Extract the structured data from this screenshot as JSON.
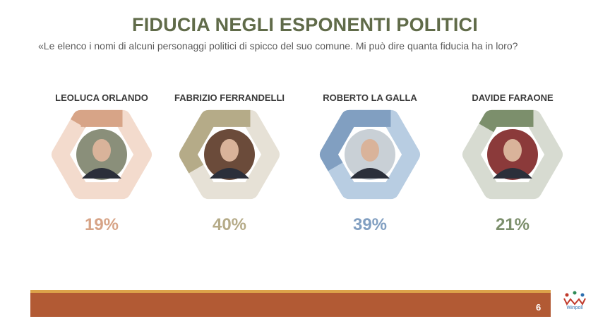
{
  "title": "FIDUCIA NEGLI ESPONENTI POLITICI",
  "question": "«Le elenco i nomi di alcuni personaggi politici di spicco del suo comune. Mi può dire quanta fiducia ha in loro?",
  "page_number": "6",
  "logo_text": "Winpoll",
  "chart_data": {
    "type": "bar",
    "title": "FIDUCIA NEGLI ESPONENTI POLITICI",
    "categories": [
      "LEOLUCA ORLANDO",
      "FABRIZIO FERRANDELLI",
      "ROBERTO LA GALLA",
      "DAVIDE FARAONE"
    ],
    "values": [
      19,
      40,
      39,
      21
    ],
    "labels": [
      "19%",
      "40%",
      "39%",
      "21%"
    ],
    "unit": "%",
    "ylim": [
      0,
      100
    ],
    "colors": [
      {
        "fill": "#d7a487",
        "track": "#f3dbcd",
        "text": "#d7a487"
      },
      {
        "fill": "#b5ab88",
        "track": "#e6e1d6",
        "text": "#b5ab88"
      },
      {
        "fill": "#819fc1",
        "track": "#b8cde2",
        "text": "#819fc1"
      },
      {
        "fill": "#7c8f6c",
        "track": "#d7dbd1",
        "text": "#7c8f6c"
      }
    ]
  }
}
